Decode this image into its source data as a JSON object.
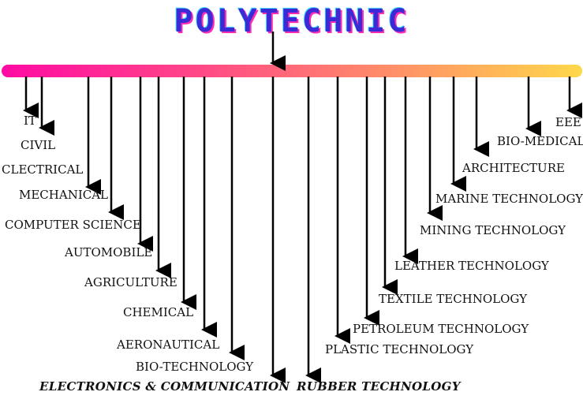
{
  "title": "POLYTECHNIC",
  "left_branches": [
    "IT",
    "CIVIL",
    "CLECTRICAL",
    "MECHANICAL",
    "COMPUTER SCIENCE",
    "AUTOMOBILE",
    "AGRICULTURE",
    "CHEMICAL",
    "AERONAUTICAL",
    "BIO-TECHNOLOGY",
    "ELECTRONICS & COMMUNICATION"
  ],
  "right_branches": [
    "RUBBER TECHNOLOGY",
    "PLASTIC TECHNOLOGY",
    "PETROLEUM TECHNOLOGY",
    "TEXTILE TECHNOLOGY",
    "LEATHER TECHNOLOGY",
    "MINING TECHNOLOGY",
    "MARINE TECHNOLOGY",
    "ARCHITECTURE",
    "BIO-MEDICAL",
    "EEE"
  ],
  "colors": {
    "bar_start": "#ff0aa4",
    "bar_end": "#ffd84a",
    "arrow": "#000000",
    "title": "#3b2bd6"
  }
}
